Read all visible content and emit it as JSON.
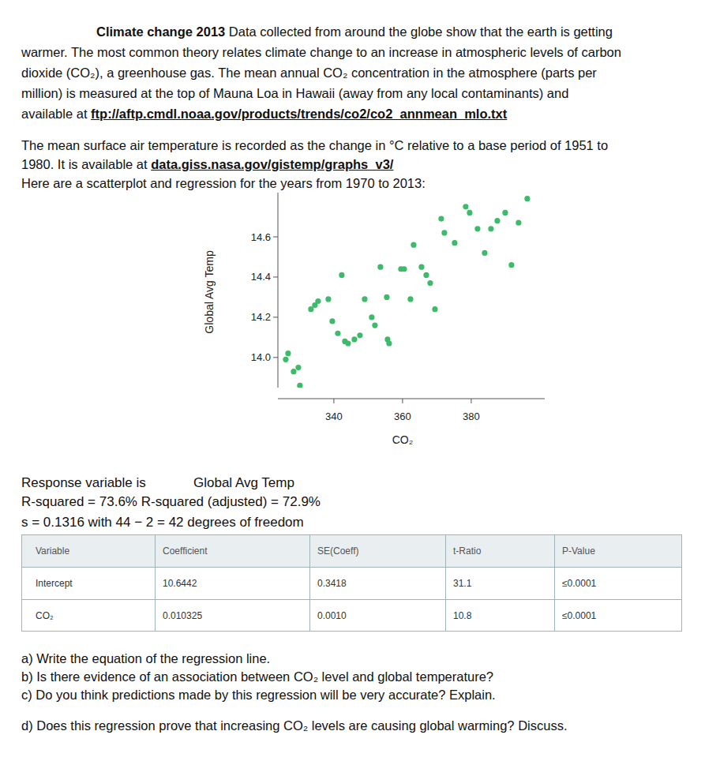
{
  "header": {
    "lead": "Climate change 2013",
    "lines": [
      "Data collected from around the globe show that the earth is getting",
      "warmer. The most common theory relates climate change to an increase in atmospheric levels of carbon",
      "dioxide (CO₂), a greenhouse gas. The mean annual CO₂ concentration in the atmosphere (parts per",
      "million) is measured at the top of Mauna Loa in Hawaii (away from any local contaminants) and",
      "available at"
    ],
    "link": "ftp://aftp.cmdl.noaa.gov/products/trends/co2/co2_annmean_mlo.txt"
  },
  "paragraph2": {
    "lines": [
      "The mean surface air temperature is recorded as the change in °C relative to a base period of 1951 to",
      "1980. It is available at"
    ],
    "link": "data.giss.nasa.gov/gistemp/graphs_v3/",
    "after": "Here are a scatterplot and regression for the years from 1970 to 2013:"
  },
  "chart_data": {
    "type": "scatter",
    "x_label": "CO₂",
    "y_label": "Global Avg Temp",
    "color": "#3dbb6a",
    "marker": "circle",
    "grid": false,
    "x": [
      325.98,
      326.67,
      328.28,
      329.66,
      330.11,
      333.33,
      334.48,
      335.4,
      338.39,
      339.54,
      341.15,
      342.3,
      343.22,
      344.14,
      345.98,
      347.59,
      348.97,
      351.03,
      351.95,
      353.56,
      355.4,
      355.63,
      356.09,
      359.54,
      360.46,
      362.3,
      363.22,
      365.52,
      366.9,
      368.05,
      369.43,
      371.26,
      372.18,
      375.17,
      378.39,
      379.54,
      381.84,
      383.91,
      385.75,
      387.59,
      389.89,
      391.72,
      393.79,
      396.32
    ],
    "values": [
      13.99,
      14.02,
      13.93,
      13.95,
      13.86,
      14.24,
      14.26,
      14.28,
      14.29,
      14.18,
      14.12,
      14.41,
      14.08,
      14.07,
      14.09,
      14.11,
      14.29,
      14.2,
      14.16,
      14.45,
      14.3,
      14.09,
      14.07,
      14.44,
      14.44,
      14.29,
      14.56,
      14.45,
      14.41,
      14.37,
      14.24,
      14.69,
      14.62,
      14.57,
      14.75,
      14.72,
      14.64,
      14.52,
      14.64,
      14.68,
      14.72,
      14.46,
      14.67,
      14.79
    ],
    "xlim": [
      323.7,
      401.4
    ],
    "ylim": [
      13.85,
      14.82
    ],
    "xticks": [
      340,
      360,
      380
    ],
    "yticks": [
      {
        "value": 14,
        "label": "14.0"
      },
      14.2,
      14.4,
      14.6
    ]
  },
  "regression": {
    "response_label": "Response variable is",
    "response": "Global Avg Temp",
    "r_squared": "R-squared = 73.6%",
    "r_squared_adj": "R-squared (adjusted) = 72.9%",
    "s_line": "s = 0.1316 with 44 − 2 = 42 degrees of freedom"
  },
  "table": {
    "header": [
      "Variable",
      "Coefficient",
      "SE(Coeff)",
      "t-Ratio",
      "P-Value"
    ],
    "rows": [
      [
        "Intercept",
        "10.6442",
        "0.3418",
        "31.1",
        "≤0.0001"
      ],
      [
        "CO₂",
        "0.010325",
        "0.0010",
        "10.8",
        "≤0.0001"
      ]
    ]
  },
  "questions": [
    "a) Write the equation of the regression line.",
    "b) Is there evidence of an association between CO₂ level and global temperature?",
    "c) Do you think predictions made by this regression will be very accurate? Explain.",
    "d) Does this regression prove that increasing CO₂ levels are causing global warming? Discuss."
  ]
}
